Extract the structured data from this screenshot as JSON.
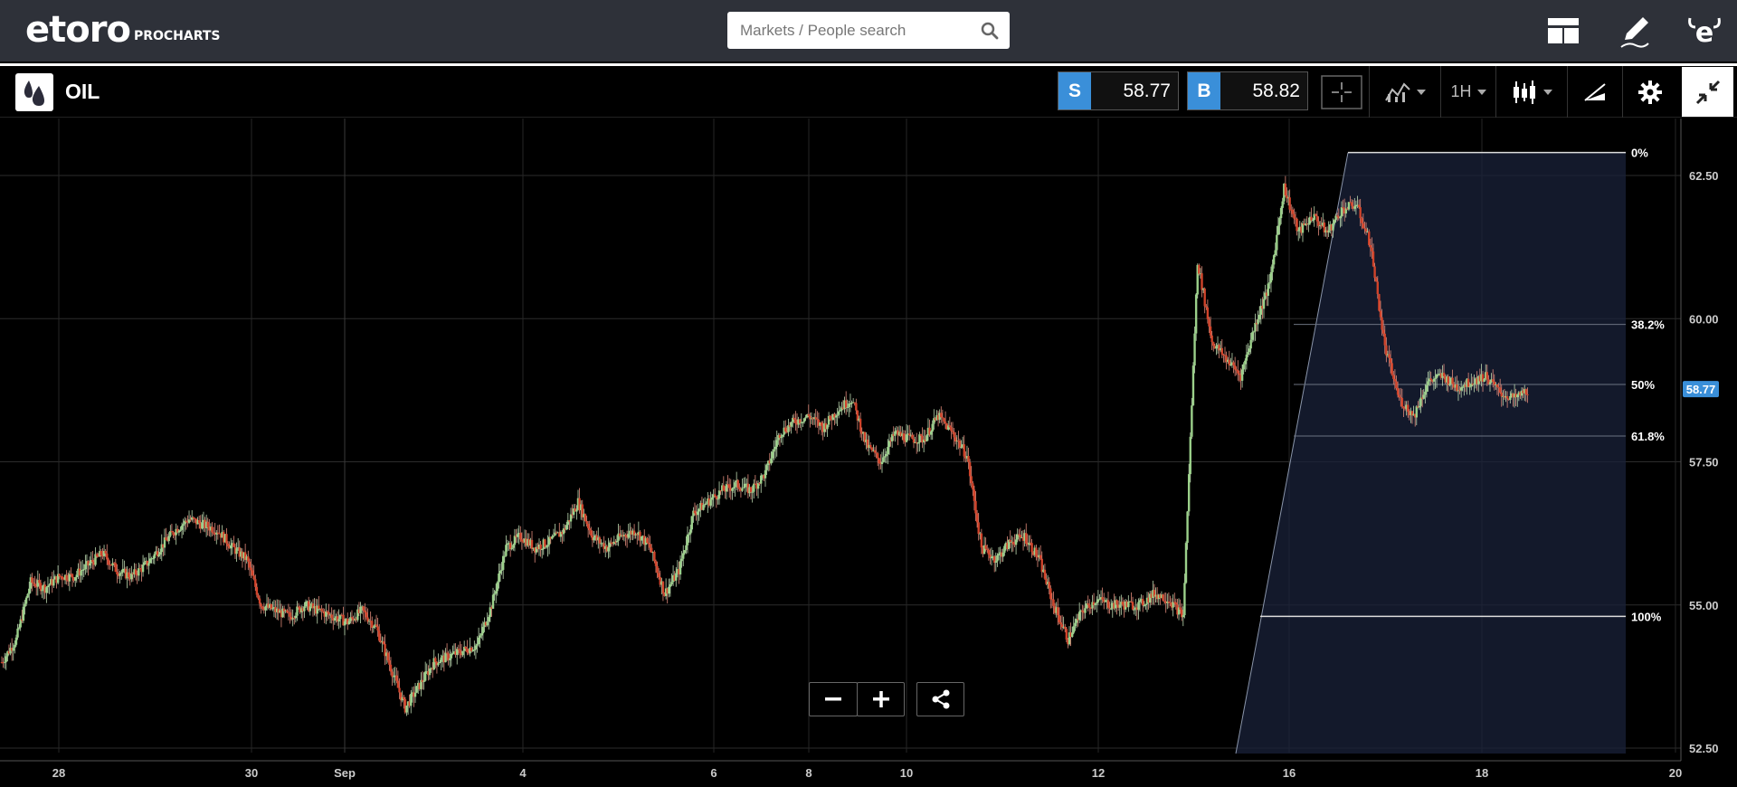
{
  "header": {
    "logo_text": "etoro",
    "logo_sub": "PROCHARTS",
    "search_placeholder": "Markets / People search"
  },
  "instrument": {
    "name": "OIL",
    "sell_label": "S",
    "sell_price": "58.77",
    "buy_label": "B",
    "buy_price": "58.82",
    "timeframe": "1H"
  },
  "chart_data": {
    "type": "candlestick",
    "current_price": "58.77",
    "y_ticks": [
      "62.50",
      "60.00",
      "57.50",
      "55.00",
      "52.50"
    ],
    "y_tick_values": [
      62.5,
      60.0,
      57.5,
      55.0,
      52.5
    ],
    "x_ticks": [
      "28",
      "30",
      "Sep",
      "4",
      "6",
      "8",
      "10",
      "12",
      "16",
      "18",
      "20"
    ],
    "fib_levels": [
      {
        "label": "0%",
        "price": 62.9
      },
      {
        "label": "38.2%",
        "price": 59.9
      },
      {
        "label": "50%",
        "price": 58.85
      },
      {
        "label": "61.8%",
        "price": 57.95
      },
      {
        "label": "100%",
        "price": 54.8
      }
    ],
    "close_path": [
      54.0,
      54.4,
      55.4,
      55.3,
      55.5,
      55.5,
      55.7,
      55.9,
      55.6,
      55.5,
      55.7,
      56.0,
      56.3,
      56.5,
      56.4,
      56.3,
      56.0,
      55.8,
      55.0,
      54.9,
      54.8,
      55.0,
      54.9,
      54.8,
      54.7,
      54.9,
      54.6,
      53.9,
      53.2,
      53.6,
      54.0,
      54.1,
      54.2,
      54.3,
      55.0,
      56.0,
      56.2,
      56.0,
      56.1,
      56.3,
      56.8,
      56.2,
      56.0,
      56.2,
      56.3,
      56.0,
      55.2,
      55.6,
      56.6,
      56.8,
      57.0,
      57.1,
      57.0,
      57.3,
      58.0,
      58.2,
      58.3,
      58.1,
      58.4,
      58.6,
      57.8,
      57.5,
      58.0,
      57.9,
      57.9,
      58.3,
      58.0,
      57.6,
      56.0,
      55.8,
      56.1,
      56.2,
      55.8,
      55.0,
      54.4,
      54.9,
      55.1,
      55.0,
      55.0,
      55.0,
      55.2,
      55.1,
      54.8,
      61.0,
      59.6,
      59.3,
      59.0,
      59.9,
      60.6,
      62.3,
      61.5,
      61.8,
      61.5,
      61.9,
      62.0,
      61.3,
      59.5,
      58.6,
      58.3,
      58.9,
      59.0,
      58.8,
      58.9,
      59.0,
      58.7,
      58.6,
      58.77
    ]
  }
}
